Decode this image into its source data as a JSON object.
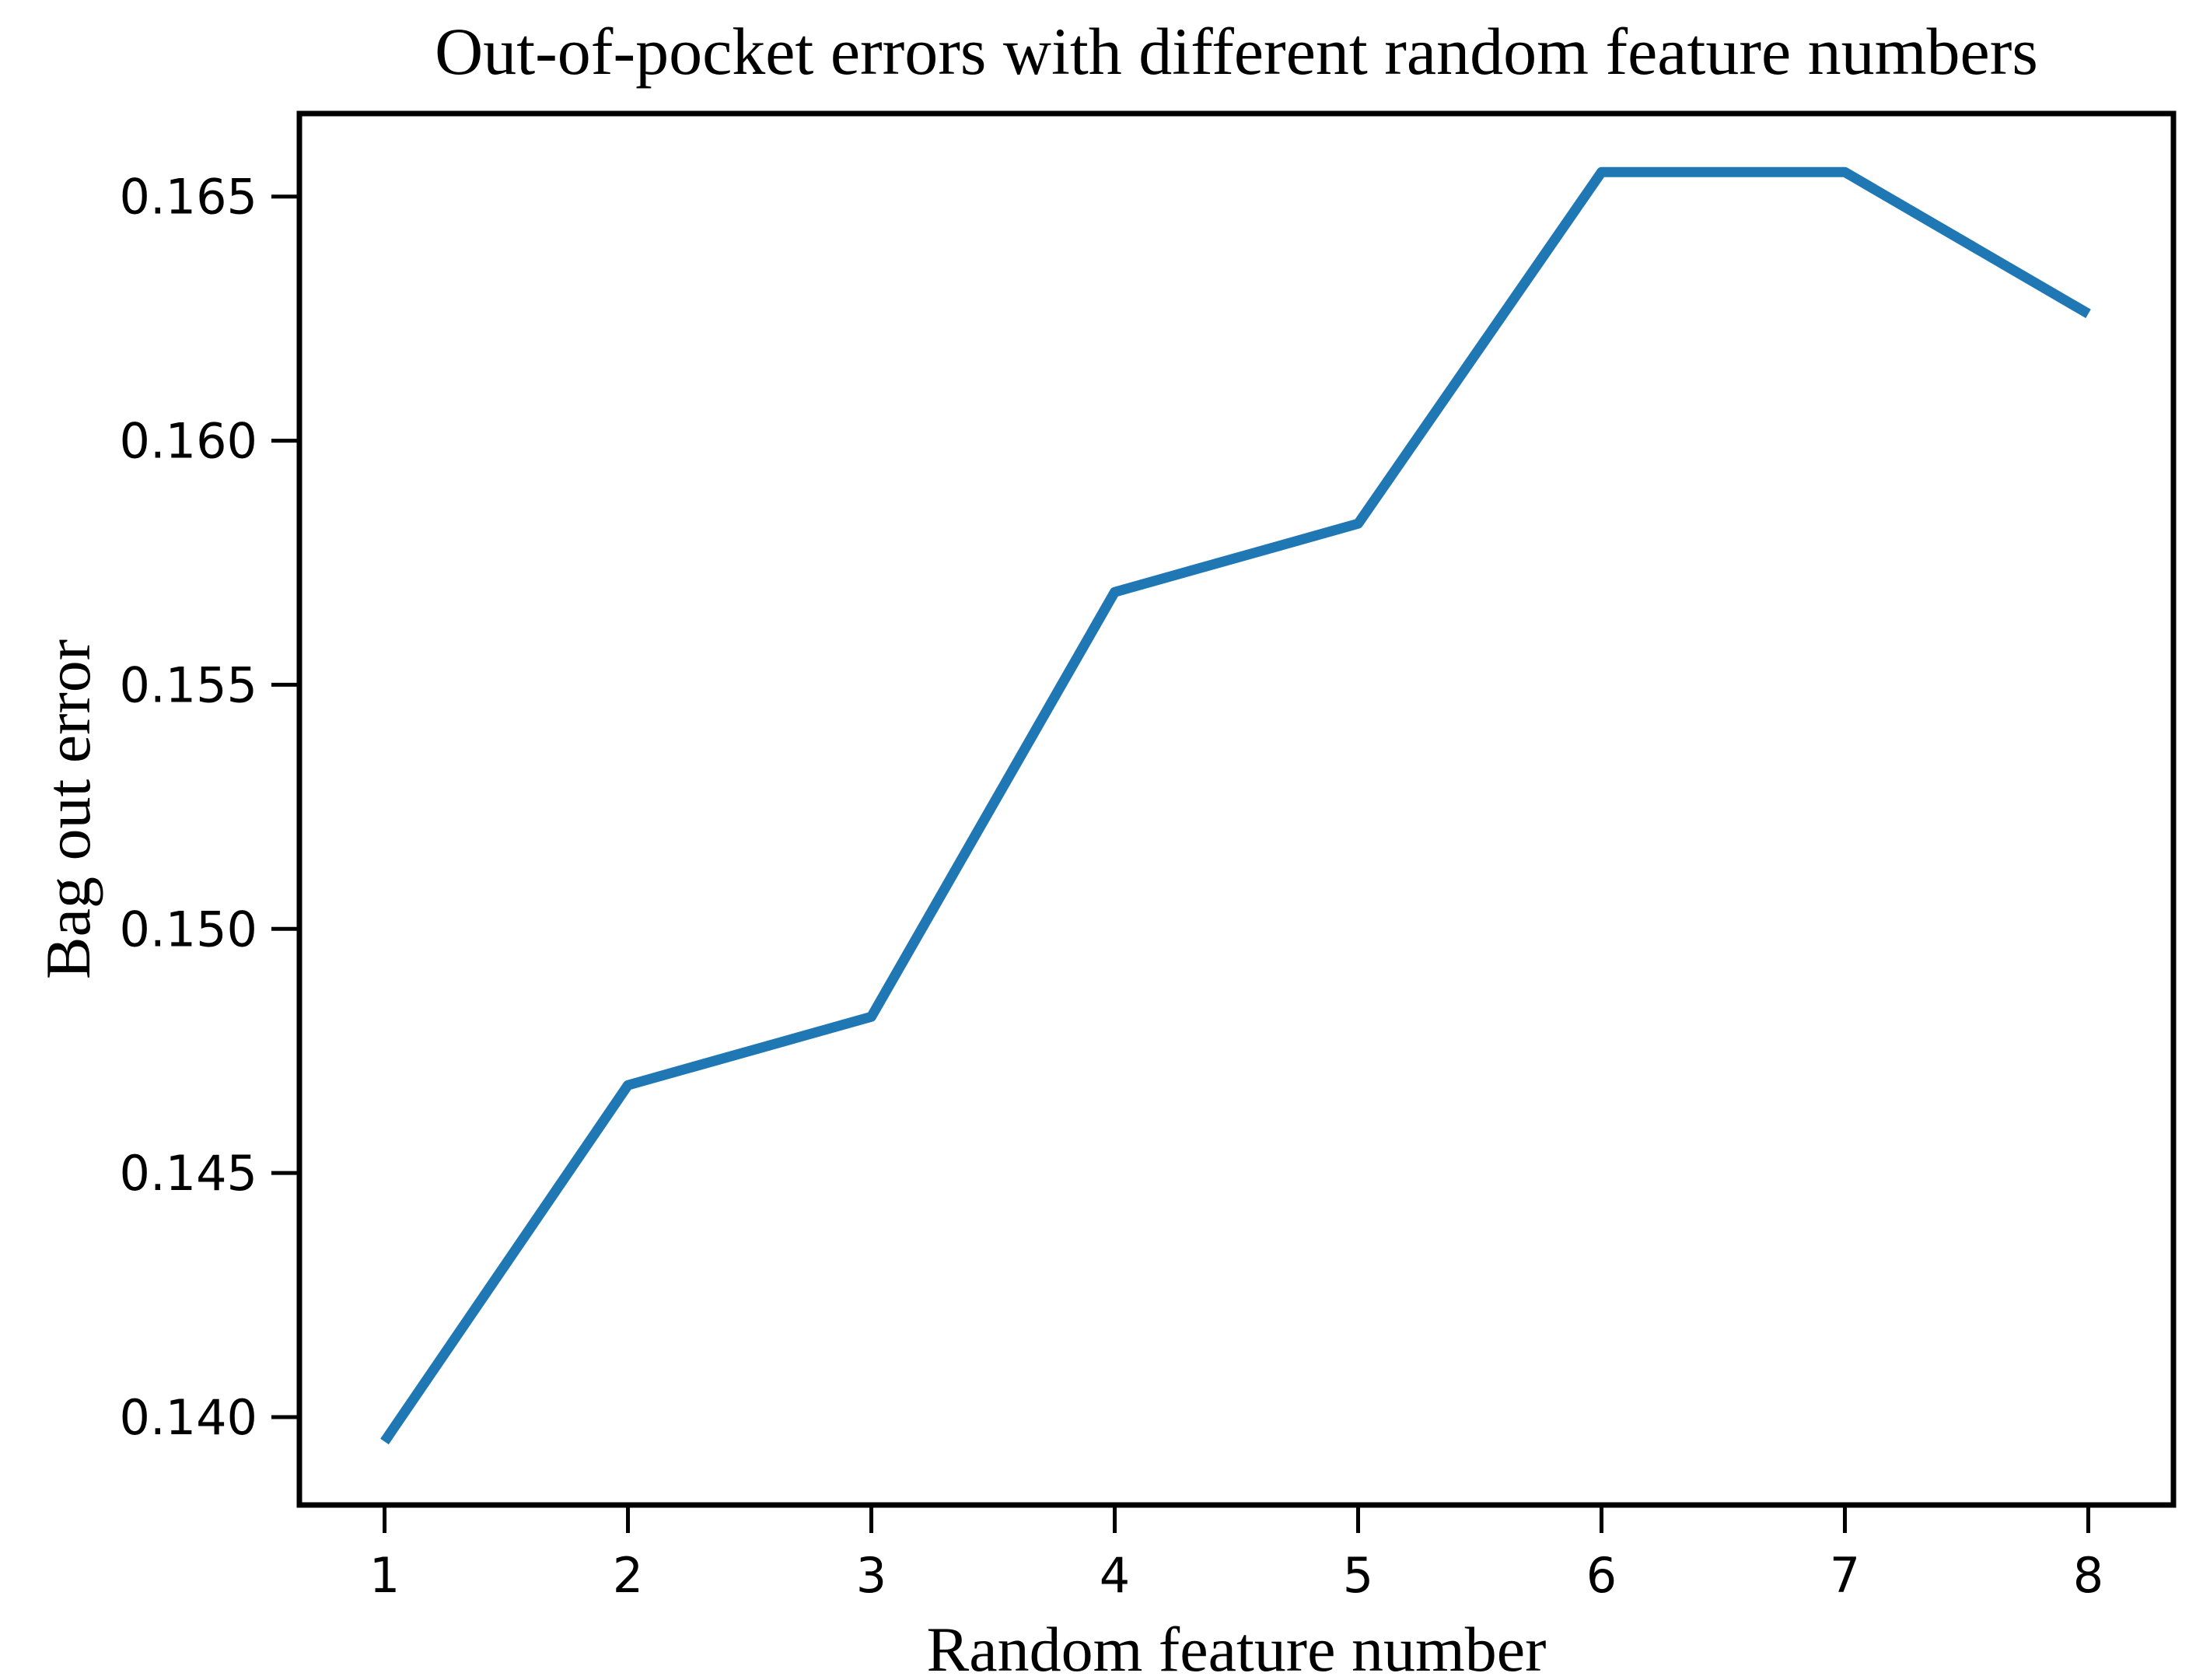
{
  "chart_data": {
    "type": "line",
    "title": "Out-of-pocket errors with different random feature numbers",
    "xlabel": "Random feature number",
    "ylabel": "Bag out error",
    "x": [
      1,
      2,
      3,
      4,
      5,
      6,
      7,
      8
    ],
    "series": [
      {
        "name": "bag-out-error",
        "color": "#1f77b4",
        "values": [
          0.1395,
          0.1468,
          0.1482,
          0.1569,
          0.1583,
          0.1655,
          0.1655,
          0.1626
        ]
      }
    ],
    "xlim": [
      0.65,
      8.35
    ],
    "ylim": [
      0.1382,
      0.1667
    ],
    "xticks": {
      "values": [
        1,
        2,
        3,
        4,
        5,
        6,
        7,
        8
      ],
      "labels": [
        "1",
        "2",
        "3",
        "4",
        "5",
        "6",
        "7",
        "8"
      ]
    },
    "yticks": {
      "values": [
        0.14,
        0.145,
        0.15,
        0.155,
        0.16,
        0.165
      ],
      "labels": [
        "0.140",
        "0.145",
        "0.150",
        "0.155",
        "0.160",
        "0.165"
      ]
    },
    "grid": false,
    "legend": "none",
    "axis_color": "#000000",
    "background": "#ffffff"
  }
}
